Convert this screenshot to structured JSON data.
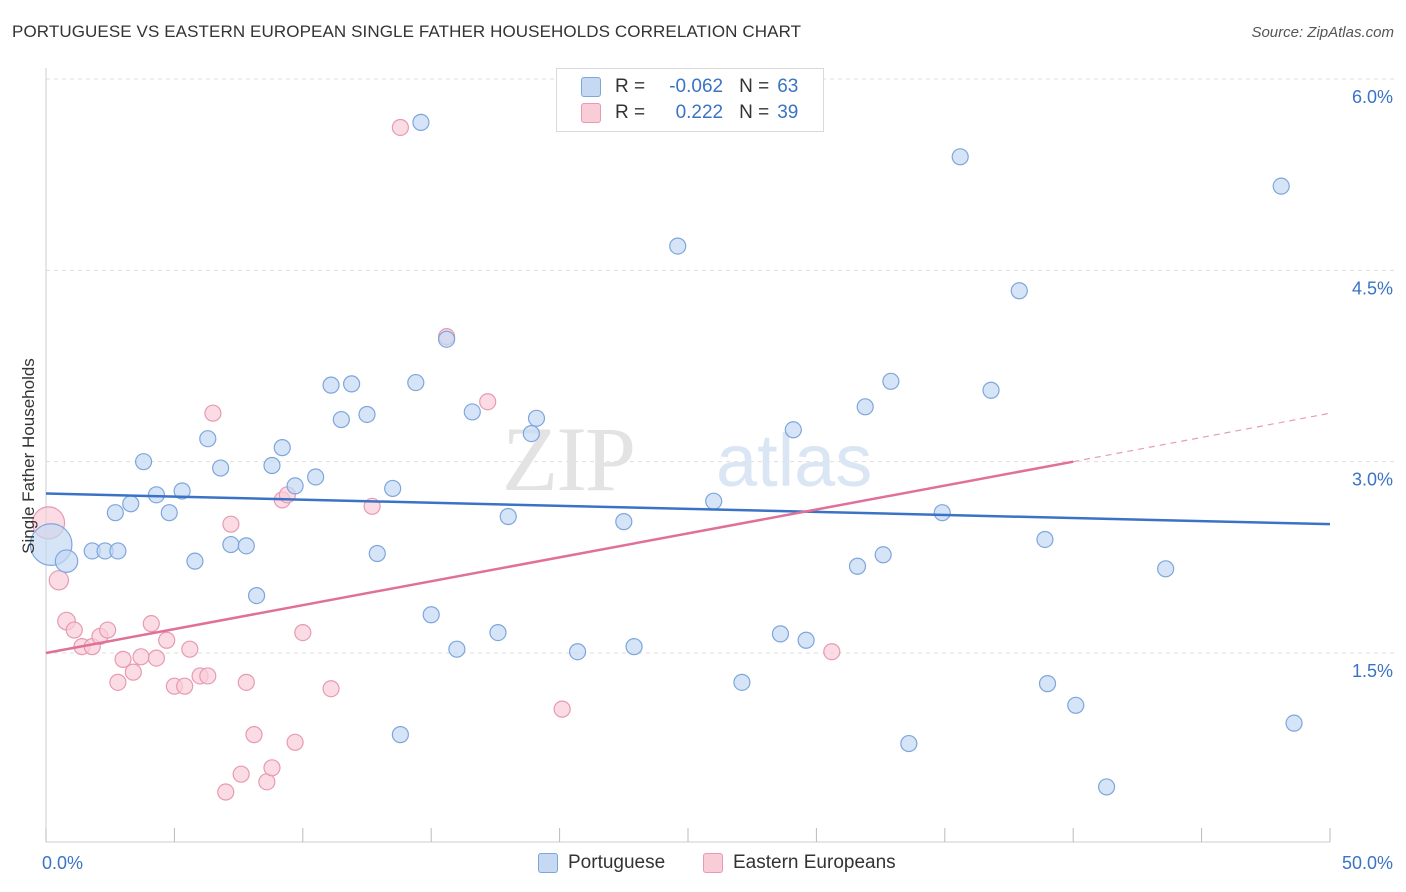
{
  "title": "PORTUGUESE VS EASTERN EUROPEAN SINGLE FATHER HOUSEHOLDS CORRELATION CHART",
  "source": "Source: ZipAtlas.com",
  "watermark": {
    "zip": "ZIP",
    "atlas": "atlas"
  },
  "legend": {
    "rows": [
      {
        "r_label": "R =",
        "r_value": "-0.062",
        "n_label": "N =",
        "n_value": "63"
      },
      {
        "r_label": "R =",
        "r_value": "0.222",
        "n_label": "N =",
        "n_value": "39"
      }
    ]
  },
  "colors": {
    "blue_fill": "#c5d9f3",
    "blue_stroke": "#7ea6dc",
    "blue_line": "#3a73c6",
    "pink_fill": "#f9cdd8",
    "pink_stroke": "#e79ab1",
    "pink_line": "#e07099",
    "axis_text": "#3a73c6",
    "grid": "#dddddd"
  },
  "chart_data": {
    "type": "scatter",
    "title": "PORTUGUESE VS EASTERN EUROPEAN SINGLE FATHER HOUSEHOLDS CORRELATION CHART",
    "xlabel": "",
    "ylabel": "Single Father Households",
    "xlim": [
      0,
      50
    ],
    "ylim": [
      0,
      6.2
    ],
    "x_tick_labels": [
      "0.0%",
      "50.0%"
    ],
    "y_ticks": [
      1.5,
      3.0,
      4.5,
      6.0
    ],
    "y_tick_labels": [
      "1.5%",
      "3.0%",
      "4.5%",
      "6.0%"
    ],
    "grid": true,
    "legend_position": "top-center",
    "series": [
      {
        "name": "Portuguese",
        "color": "blue",
        "r": -0.062,
        "n": 63,
        "trend": {
          "x0": 0,
          "y0": 2.75,
          "x1": 50,
          "y1": 2.51
        },
        "points": [
          [
            0.2,
            2.35,
            26
          ],
          [
            0.8,
            2.22,
            14
          ],
          [
            1.8,
            2.3,
            10
          ],
          [
            2.3,
            2.3,
            10
          ],
          [
            2.8,
            2.3,
            10
          ],
          [
            2.7,
            2.6,
            10
          ],
          [
            3.3,
            2.67,
            10
          ],
          [
            3.8,
            3.0,
            10
          ],
          [
            4.3,
            2.74,
            10
          ],
          [
            4.8,
            2.6,
            10
          ],
          [
            5.3,
            2.77,
            10
          ],
          [
            5.8,
            2.22,
            10
          ],
          [
            6.3,
            3.18,
            10
          ],
          [
            6.8,
            2.95,
            10
          ],
          [
            7.2,
            2.35,
            10
          ],
          [
            7.8,
            2.34,
            10
          ],
          [
            8.2,
            1.95,
            10
          ],
          [
            8.8,
            2.97,
            10
          ],
          [
            9.2,
            3.11,
            10
          ],
          [
            9.7,
            2.81,
            10
          ],
          [
            10.5,
            2.88,
            10
          ],
          [
            11.1,
            3.6,
            10
          ],
          [
            11.5,
            3.33,
            10
          ],
          [
            11.9,
            3.61,
            10
          ],
          [
            12.5,
            3.37,
            10
          ],
          [
            12.9,
            2.28,
            10
          ],
          [
            13.5,
            2.79,
            10
          ],
          [
            13.8,
            0.86,
            10
          ],
          [
            14.4,
            3.62,
            10
          ],
          [
            14.6,
            5.66,
            10
          ],
          [
            15.0,
            1.8,
            10
          ],
          [
            15.6,
            3.96,
            10
          ],
          [
            16.0,
            1.53,
            10
          ],
          [
            16.6,
            3.39,
            10
          ],
          [
            17.6,
            1.66,
            10
          ],
          [
            18.0,
            2.57,
            10
          ],
          [
            18.9,
            3.22,
            10
          ],
          [
            19.1,
            3.34,
            10
          ],
          [
            20.7,
            1.51,
            10
          ],
          [
            22.5,
            2.53,
            10
          ],
          [
            22.9,
            1.55,
            10
          ],
          [
            24.6,
            4.69,
            10
          ],
          [
            26.0,
            2.69,
            10
          ],
          [
            27.1,
            1.27,
            10
          ],
          [
            28.6,
            1.65,
            10
          ],
          [
            29.1,
            3.25,
            10
          ],
          [
            29.6,
            1.6,
            10
          ],
          [
            31.6,
            2.18,
            10
          ],
          [
            31.9,
            3.43,
            10
          ],
          [
            32.6,
            2.27,
            10
          ],
          [
            32.9,
            3.63,
            10
          ],
          [
            33.6,
            0.79,
            10
          ],
          [
            34.9,
            2.6,
            10
          ],
          [
            35.6,
            5.39,
            10
          ],
          [
            36.8,
            3.56,
            10
          ],
          [
            37.9,
            4.34,
            10
          ],
          [
            38.9,
            2.39,
            10
          ],
          [
            39.0,
            1.26,
            10
          ],
          [
            40.1,
            1.09,
            10
          ],
          [
            41.3,
            0.45,
            10
          ],
          [
            43.6,
            2.16,
            10
          ],
          [
            48.1,
            5.16,
            10
          ],
          [
            48.6,
            0.95,
            10
          ]
        ]
      },
      {
        "name": "Eastern Europeans",
        "color": "pink",
        "r": 0.222,
        "n": 39,
        "trend": {
          "x0": 0,
          "y0": 1.5,
          "x1": 40,
          "y1": 3.0,
          "dash_x1": 50,
          "dash_y1": 3.38
        },
        "points": [
          [
            0.1,
            2.52,
            20
          ],
          [
            0.5,
            2.07,
            12
          ],
          [
            0.8,
            1.75,
            11
          ],
          [
            1.1,
            1.68,
            10
          ],
          [
            1.4,
            1.55,
            10
          ],
          [
            1.8,
            1.55,
            10
          ],
          [
            2.1,
            1.63,
            10
          ],
          [
            2.4,
            1.68,
            10
          ],
          [
            2.8,
            1.27,
            10
          ],
          [
            3.0,
            1.45,
            10
          ],
          [
            3.4,
            1.35,
            10
          ],
          [
            3.7,
            1.47,
            10
          ],
          [
            4.1,
            1.73,
            10
          ],
          [
            4.3,
            1.46,
            10
          ],
          [
            4.7,
            1.6,
            10
          ],
          [
            5.0,
            1.24,
            10
          ],
          [
            5.4,
            1.24,
            10
          ],
          [
            5.6,
            1.53,
            10
          ],
          [
            6.0,
            1.32,
            10
          ],
          [
            6.3,
            1.32,
            10
          ],
          [
            6.5,
            3.38,
            10
          ],
          [
            7.0,
            0.41,
            10
          ],
          [
            7.2,
            2.51,
            10
          ],
          [
            7.6,
            0.55,
            10
          ],
          [
            7.8,
            1.27,
            10
          ],
          [
            8.1,
            0.86,
            10
          ],
          [
            8.6,
            0.49,
            10
          ],
          [
            8.8,
            0.6,
            10
          ],
          [
            9.2,
            2.7,
            10
          ],
          [
            9.4,
            2.74,
            10
          ],
          [
            9.7,
            0.8,
            10
          ],
          [
            10.0,
            1.66,
            10
          ],
          [
            11.1,
            1.22,
            10
          ],
          [
            12.7,
            2.65,
            10
          ],
          [
            13.8,
            5.62,
            10
          ],
          [
            15.6,
            3.98,
            10
          ],
          [
            17.2,
            3.47,
            10
          ],
          [
            20.1,
            1.06,
            10
          ],
          [
            30.6,
            1.51,
            10
          ]
        ]
      }
    ]
  }
}
